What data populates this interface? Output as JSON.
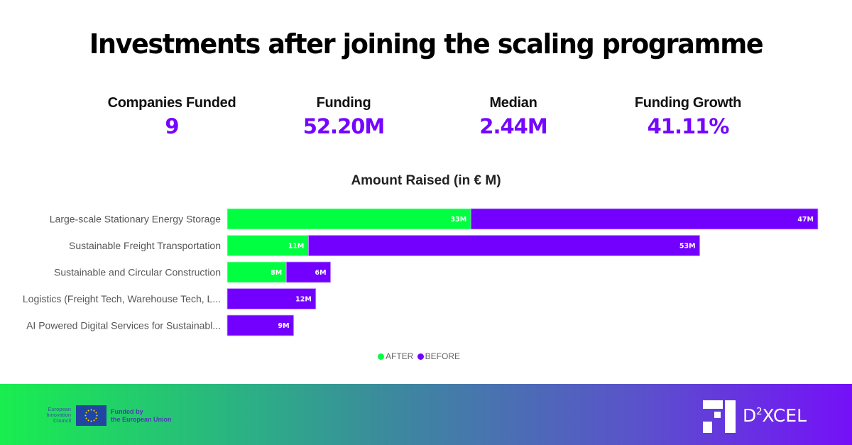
{
  "title": "Investments after joining the scaling programme",
  "kpis": [
    {
      "label": "Companies Funded",
      "value": "9"
    },
    {
      "label": "Funding",
      "value": "52.20M"
    },
    {
      "label": "Median",
      "value": "2.44M"
    },
    {
      "label": "Funding Growth",
      "value": "41.11%"
    }
  ],
  "colors": {
    "after": "#00ff40",
    "before": "#7300ff",
    "kpi_value": "#7406ff"
  },
  "chart_data": {
    "type": "bar",
    "orientation": "horizontal",
    "stacked": true,
    "title": "Amount Raised (in € M)",
    "xlabel": "",
    "ylabel": "",
    "xlim": [
      0,
      80
    ],
    "grid": false,
    "legend_position": "bottom",
    "categories": [
      "Large-scale Stationary Energy Storage",
      "Sustainable Freight Transportation",
      "Sustainable and Circular Construction",
      "Logistics (Freight Tech, Warehouse Tech, L...",
      "AI Powered Digital Services for Sustainabl..."
    ],
    "series": [
      {
        "name": "AFTER",
        "values": [
          33,
          11,
          8,
          0,
          0
        ],
        "labels": [
          "33M",
          "11M",
          "8M",
          "",
          ""
        ]
      },
      {
        "name": "BEFORE",
        "values": [
          47,
          53,
          6,
          12,
          9
        ],
        "labels": [
          "47M",
          "53M",
          "6M",
          "12M",
          "9M"
        ]
      }
    ]
  },
  "legend": {
    "items": [
      {
        "label": "AFTER"
      },
      {
        "label": "BEFORE"
      }
    ]
  },
  "footer": {
    "eic_text": [
      "European",
      "Innovation",
      "Council"
    ],
    "funded_text": [
      "Funded by",
      "the European Union"
    ],
    "brand_main": "D",
    "brand_sup": "2",
    "brand_rest": "XCEL"
  }
}
